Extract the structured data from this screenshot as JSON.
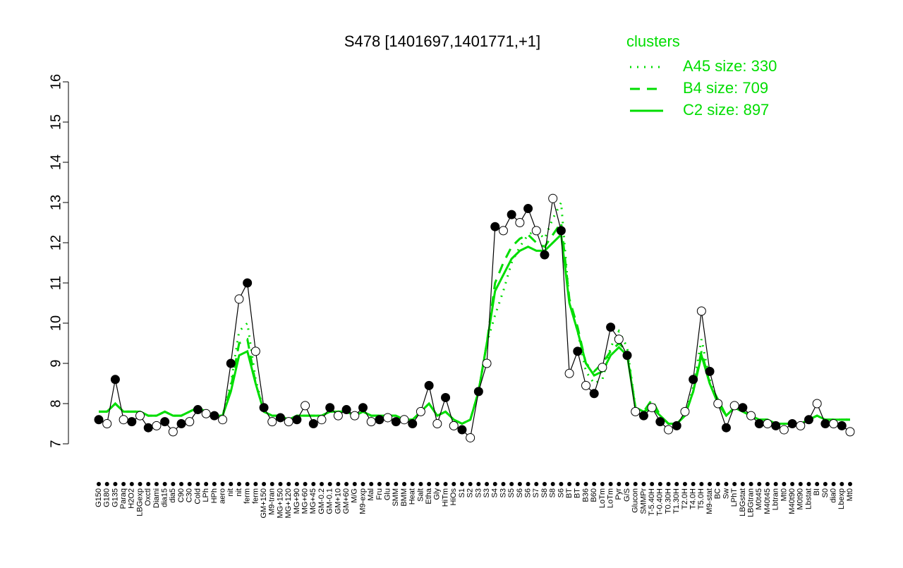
{
  "chart_data": {
    "type": "line",
    "title": "S478 [1401697,1401771,+1]",
    "categories": [
      "G150",
      "G180",
      "G135",
      "Paraq",
      "H2O2",
      "LBGexp",
      "Oxctl",
      "Diami",
      "dia15",
      "dia5",
      "C90",
      "C30",
      "Cold",
      "LPh",
      "HPh",
      "aero",
      "nit",
      "nit",
      "ferm",
      "ferm",
      "GM+150",
      "M9-tran",
      "MG+150",
      "MG+120",
      "MG+90",
      "MG+60",
      "MG+45",
      "GM-0.2",
      "GM-0.1",
      "GM+10",
      "GM+60",
      "M/G",
      "M9-exp",
      "Mal",
      "Fru",
      "Glu",
      "SMM",
      "BMM",
      "Heat",
      "Salt",
      "Etha",
      "Gly",
      "HiTm",
      "HiOs",
      "S1",
      "S2",
      "S3",
      "S3",
      "S4",
      "S3",
      "S5",
      "S6",
      "S6",
      "S7",
      "S8",
      "S8",
      "S6",
      "BT",
      "BT",
      "B36",
      "B60",
      "LoTm",
      "LoTm",
      "Pyr",
      "G/S",
      "Glucon",
      "SMMPr",
      "T-5.40H",
      "T-0.40H",
      "T0.30H",
      "T1.30H",
      "T2.0H",
      "T4.0H",
      "T5.0H",
      "M9-stat",
      "BC",
      "Sw",
      "LPhT",
      "LBGstat",
      "LBGtran",
      "M0t45",
      "M40t45",
      "Lbtran",
      "Mt0",
      "M40t90",
      "M0t90",
      "Lbstat",
      "BI",
      "S0",
      "dia0",
      "Lbexp",
      "Mt0"
    ],
    "values": [
      7.6,
      7.5,
      8.6,
      7.6,
      7.55,
      7.7,
      7.4,
      7.45,
      7.55,
      7.3,
      7.5,
      7.55,
      7.85,
      7.75,
      7.7,
      7.6,
      9.0,
      10.6,
      11.0,
      9.3,
      7.9,
      7.55,
      7.65,
      7.55,
      7.6,
      7.95,
      7.5,
      7.6,
      7.9,
      7.7,
      7.85,
      7.7,
      7.9,
      7.55,
      7.6,
      7.65,
      7.55,
      7.6,
      7.5,
      7.8,
      8.45,
      7.5,
      8.15,
      7.45,
      7.35,
      7.15,
      8.3,
      9.0,
      12.4,
      12.3,
      12.7,
      12.5,
      12.85,
      12.3,
      11.7,
      13.1,
      12.3,
      8.75,
      9.3,
      8.45,
      8.25,
      8.9,
      9.9,
      9.6,
      9.2,
      7.8,
      7.7,
      7.9,
      7.55,
      7.35,
      7.45,
      7.8,
      8.6,
      10.3,
      8.8,
      8.0,
      7.4,
      7.95,
      7.9,
      7.7,
      7.5,
      7.5,
      7.45,
      7.35,
      7.5,
      7.45,
      7.6,
      8.0,
      7.5,
      7.5,
      7.45,
      7.3
    ],
    "color": "#000000",
    "legend_title": "clusters",
    "series": [
      {
        "name": "A45 size: 330",
        "color": "#00dd00",
        "dash": "dotted",
        "values": [
          7.8,
          7.8,
          8.0,
          7.8,
          7.8,
          7.8,
          7.7,
          7.7,
          7.8,
          7.7,
          7.7,
          7.8,
          7.9,
          7.8,
          7.7,
          7.7,
          8.5,
          9.8,
          10.0,
          8.6,
          7.8,
          7.7,
          7.7,
          7.6,
          7.7,
          7.7,
          7.7,
          7.7,
          7.8,
          7.8,
          7.8,
          7.7,
          7.8,
          7.7,
          7.7,
          7.7,
          7.7,
          7.6,
          7.6,
          7.8,
          8.0,
          7.7,
          7.8,
          7.6,
          7.5,
          7.6,
          8.3,
          9.5,
          10.2,
          10.8,
          11.5,
          11.9,
          12.2,
          12.3,
          12.1,
          12.6,
          13.0,
          10.5,
          9.8,
          8.8,
          8.5,
          8.6,
          9.4,
          9.8,
          9.4,
          7.9,
          7.8,
          7.9,
          7.7,
          7.5,
          7.5,
          7.7,
          8.4,
          9.6,
          8.6,
          8.0,
          7.7,
          7.9,
          7.8,
          7.7,
          7.6,
          7.6,
          7.5,
          7.5,
          7.5,
          7.5,
          7.6,
          7.7,
          7.6,
          7.6,
          7.6,
          7.6
        ]
      },
      {
        "name": "B4 size: 709",
        "color": "#00dd00",
        "dash": "dashed",
        "values": [
          7.8,
          7.8,
          8.0,
          7.8,
          7.8,
          7.8,
          7.7,
          7.7,
          7.8,
          7.7,
          7.7,
          7.8,
          7.9,
          7.8,
          7.7,
          7.7,
          8.4,
          9.5,
          9.6,
          8.5,
          7.8,
          7.7,
          7.7,
          7.6,
          7.7,
          7.7,
          7.7,
          7.7,
          7.8,
          7.8,
          7.8,
          7.7,
          7.8,
          7.7,
          7.7,
          7.7,
          7.7,
          7.6,
          7.6,
          7.8,
          8.0,
          7.7,
          7.8,
          7.6,
          7.5,
          7.6,
          8.3,
          9.5,
          11.0,
          11.5,
          11.9,
          12.1,
          12.2,
          12.0,
          11.9,
          12.2,
          12.5,
          10.6,
          9.9,
          9.0,
          8.8,
          9.0,
          9.3,
          9.5,
          9.3,
          7.9,
          7.8,
          8.1,
          7.7,
          7.5,
          7.5,
          7.7,
          8.3,
          9.3,
          8.5,
          8.1,
          7.7,
          7.9,
          7.8,
          7.7,
          7.6,
          7.6,
          7.5,
          7.5,
          7.5,
          7.5,
          7.6,
          7.7,
          7.6,
          7.6,
          7.6,
          7.6
        ]
      },
      {
        "name": "C2 size: 897",
        "color": "#00dd00",
        "dash": "solid",
        "values": [
          7.8,
          7.8,
          8.0,
          7.8,
          7.8,
          7.8,
          7.7,
          7.7,
          7.8,
          7.7,
          7.7,
          7.8,
          7.9,
          7.8,
          7.7,
          7.7,
          8.3,
          9.2,
          9.3,
          8.5,
          7.8,
          7.7,
          7.7,
          7.6,
          7.7,
          7.7,
          7.7,
          7.7,
          7.8,
          7.8,
          7.8,
          7.7,
          7.8,
          7.7,
          7.7,
          7.7,
          7.7,
          7.6,
          7.6,
          7.8,
          8.0,
          7.7,
          7.8,
          7.6,
          7.5,
          7.6,
          8.3,
          9.5,
          10.8,
          11.2,
          11.6,
          11.8,
          11.9,
          11.8,
          11.8,
          12.0,
          12.2,
          10.5,
          9.8,
          9.0,
          8.7,
          8.8,
          9.2,
          9.4,
          9.2,
          7.9,
          7.8,
          7.9,
          7.7,
          7.5,
          7.5,
          7.7,
          8.3,
          9.2,
          8.5,
          8.0,
          7.7,
          7.9,
          7.8,
          7.7,
          7.6,
          7.6,
          7.5,
          7.5,
          7.5,
          7.5,
          7.6,
          7.7,
          7.6,
          7.6,
          7.6,
          7.6
        ]
      }
    ],
    "ylim": [
      7,
      16
    ],
    "yticks": [
      7,
      8,
      9,
      10,
      11,
      12,
      13,
      14,
      15,
      16
    ]
  }
}
